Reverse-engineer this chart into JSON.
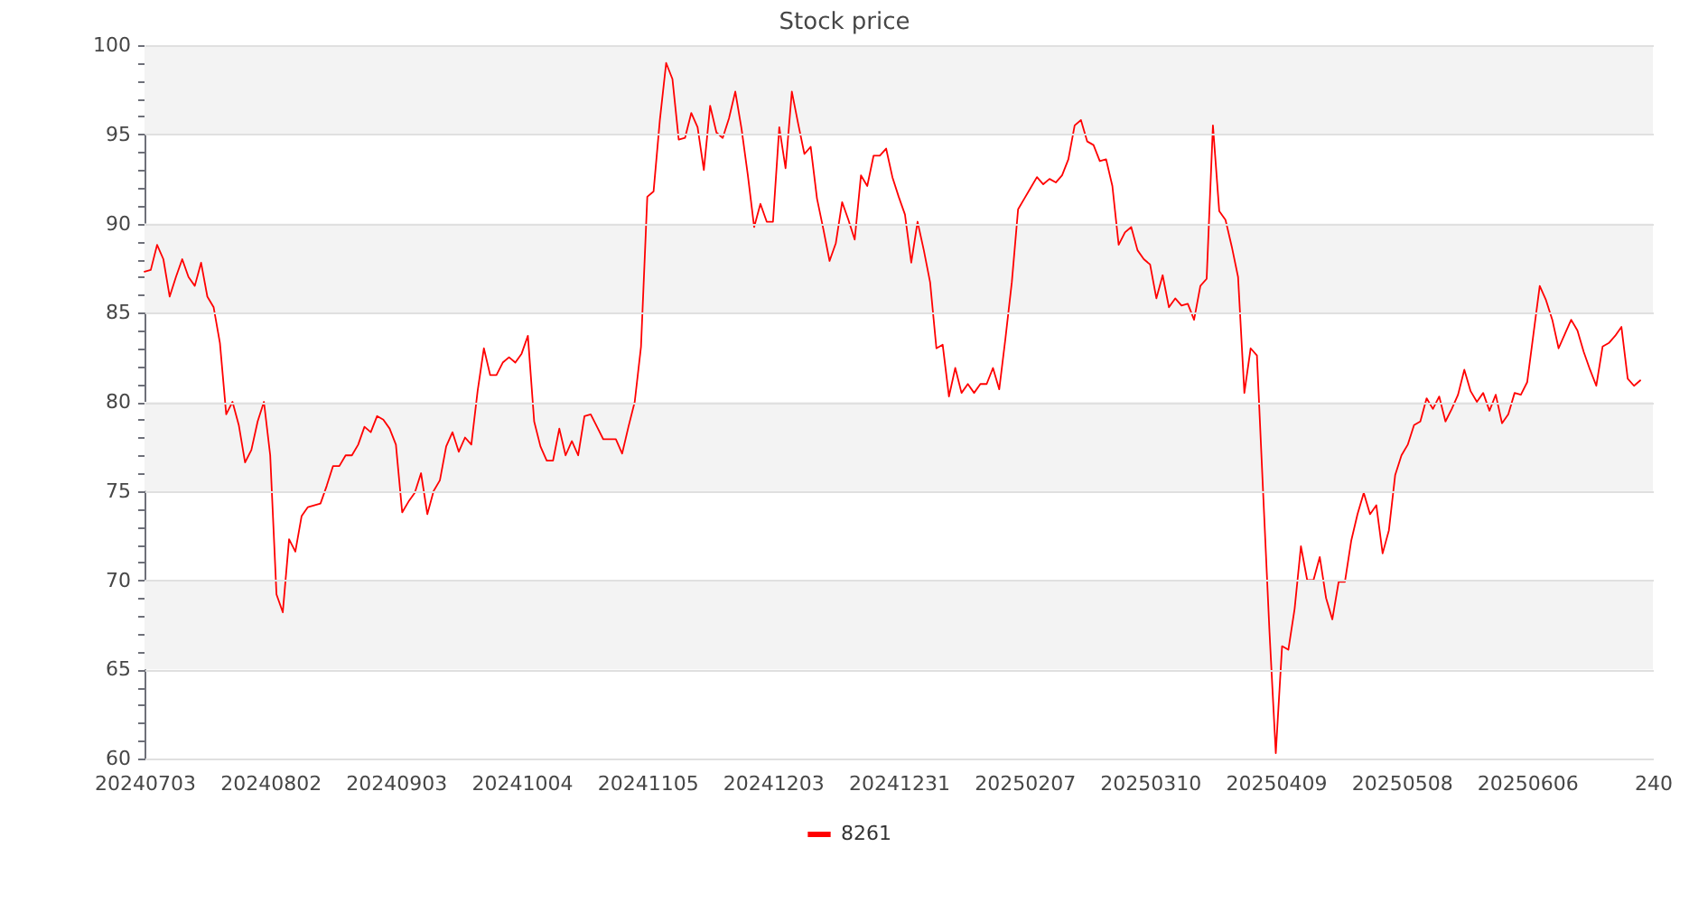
{
  "chart_data": {
    "type": "line",
    "title": "Stock price",
    "categories": [
      "20240703",
      null,
      null,
      null,
      null,
      null,
      null,
      null,
      null,
      null,
      null,
      null,
      null,
      null,
      null,
      null,
      null,
      null,
      null,
      null,
      "20240802",
      null,
      null,
      null,
      null,
      null,
      null,
      null,
      null,
      null,
      null,
      null,
      null,
      null,
      null,
      null,
      null,
      null,
      null,
      null,
      "20240903",
      null,
      null,
      null,
      null,
      null,
      null,
      null,
      null,
      null,
      null,
      null,
      null,
      null,
      null,
      null,
      null,
      null,
      null,
      null,
      "20241004",
      null,
      null,
      null,
      null,
      null,
      null,
      null,
      null,
      null,
      null,
      null,
      null,
      null,
      null,
      null,
      null,
      null,
      null,
      null,
      "20241105",
      null,
      null,
      null,
      null,
      null,
      null,
      null,
      null,
      null,
      null,
      null,
      null,
      null,
      null,
      null,
      null,
      null,
      null,
      null,
      "20241203",
      null,
      null,
      null,
      null,
      null,
      null,
      null,
      null,
      null,
      null,
      null,
      null,
      null,
      null,
      null,
      null,
      null,
      null,
      null,
      "20241231",
      null,
      null,
      null,
      null,
      null,
      null,
      null,
      null,
      null,
      null,
      null,
      null,
      null,
      null,
      null,
      null,
      null,
      null,
      null,
      "20250207",
      null,
      null,
      null,
      null,
      null,
      null,
      null,
      null,
      null,
      null,
      null,
      null,
      null,
      null,
      null,
      null,
      null,
      null,
      null,
      "20250310",
      null,
      null,
      null,
      null,
      null,
      null,
      null,
      null,
      null,
      null,
      null,
      null,
      null,
      null,
      null,
      null,
      null,
      null,
      null,
      "20250409",
      null,
      null,
      null,
      null,
      null,
      null,
      null,
      null,
      null,
      null,
      null,
      null,
      null,
      null,
      null,
      null,
      null,
      null,
      null,
      "20250508",
      null,
      null,
      null,
      null,
      null,
      null,
      null,
      null,
      null,
      null,
      null,
      null,
      null,
      null,
      null,
      null,
      null,
      null,
      null,
      "20250606",
      null,
      null,
      null,
      null,
      null,
      null,
      null,
      null,
      null,
      null,
      null,
      null,
      null,
      null,
      null,
      null,
      null,
      null,
      null,
      "240"
    ],
    "series": [
      {
        "name": "8261",
        "color": "#ff0000",
        "values": [
          87.3,
          87.4,
          88.8,
          88.0,
          85.9,
          87.0,
          88.0,
          87.0,
          86.5,
          87.8,
          85.9,
          85.3,
          83.3,
          79.3,
          80.0,
          78.7,
          76.6,
          77.3,
          78.9,
          80.0,
          77.0,
          69.2,
          68.2,
          72.3,
          71.6,
          73.6,
          74.1,
          74.2,
          74.3,
          75.3,
          76.4,
          76.4,
          77.0,
          77.0,
          77.6,
          78.6,
          78.3,
          79.2,
          79.0,
          78.5,
          77.6,
          73.8,
          74.4,
          74.9,
          76.0,
          73.7,
          75.0,
          75.6,
          77.5,
          78.3,
          77.2,
          78.0,
          77.6,
          80.6,
          83.0,
          81.5,
          81.5,
          82.2,
          82.5,
          82.2,
          82.7,
          83.7,
          78.9,
          77.5,
          76.7,
          76.7,
          78.5,
          77.0,
          77.8,
          77.0,
          79.2,
          79.3,
          78.6,
          77.9,
          77.9,
          77.9,
          77.1,
          78.6,
          80.0,
          83.1,
          91.5,
          91.8,
          95.8,
          99.0,
          98.1,
          94.7,
          94.8,
          96.2,
          95.4,
          93.0,
          96.6,
          95.1,
          94.8,
          95.9,
          97.4,
          95.3,
          92.7,
          89.8,
          91.1,
          90.1,
          90.1,
          95.4,
          93.1,
          97.4,
          95.6,
          93.9,
          94.3,
          91.4,
          89.7,
          87.9,
          88.9,
          91.2,
          90.2,
          89.1,
          92.7,
          92.1,
          93.8,
          93.8,
          94.2,
          92.6,
          91.5,
          90.5,
          87.8,
          90.1,
          88.5,
          86.7,
          83.0,
          83.2,
          80.3,
          81.9,
          80.5,
          81.0,
          80.5,
          81.0,
          81.0,
          81.9,
          80.7,
          83.6,
          86.7,
          90.8,
          91.4,
          92.0,
          92.6,
          92.2,
          92.5,
          92.3,
          92.7,
          93.6,
          95.5,
          95.8,
          94.6,
          94.4,
          93.5,
          93.6,
          92.1,
          88.8,
          89.5,
          89.8,
          88.5,
          88.0,
          87.7,
          85.8,
          87.1,
          85.3,
          85.8,
          85.4,
          85.5,
          84.6,
          86.5,
          86.9,
          95.5,
          90.7,
          90.2,
          88.7,
          87.0,
          80.5,
          83.0,
          82.6,
          74.8,
          67.1,
          60.3,
          66.3,
          66.1,
          68.4,
          71.9,
          70.0,
          70.0,
          71.3,
          69.0,
          67.8,
          69.9,
          69.9,
          72.2,
          73.7,
          74.9,
          73.7,
          74.2,
          71.5,
          72.8,
          75.9,
          77.0,
          77.6,
          78.7,
          78.9,
          80.2,
          79.6,
          80.3,
          78.9,
          79.6,
          80.4,
          81.8,
          80.6,
          80.0,
          80.5,
          79.5,
          80.4,
          78.8,
          79.3,
          80.5,
          80.4,
          81.1,
          83.8,
          86.5,
          85.7,
          84.6,
          83.0,
          83.8,
          84.6,
          84.0,
          82.8,
          81.8,
          80.9,
          83.1,
          83.3,
          83.7,
          84.2,
          81.3,
          80.9,
          81.2,
          null,
          null
        ]
      }
    ],
    "ylim": [
      60,
      100
    ],
    "yticks": [
      60,
      {
        "value": 61,
        "label": null
      },
      {
        "value": 62,
        "label": null
      },
      {
        "value": 63,
        "label": null
      },
      {
        "value": 64,
        "label": null
      },
      65,
      {
        "value": 66,
        "label": null
      },
      {
        "value": 67,
        "label": null
      },
      {
        "value": 68,
        "label": null
      },
      {
        "value": 69,
        "label": null
      },
      70,
      {
        "value": 71,
        "label": null
      },
      {
        "value": 72,
        "label": null
      },
      {
        "value": 73,
        "label": null
      },
      {
        "value": 74,
        "label": null
      },
      75,
      {
        "value": 76,
        "label": null
      },
      {
        "value": 77,
        "label": null
      },
      {
        "value": 78,
        "label": null
      },
      {
        "value": 79,
        "label": null
      },
      80,
      {
        "value": 81,
        "label": null
      },
      {
        "value": 82,
        "label": null
      },
      {
        "value": 83,
        "label": null
      },
      {
        "value": 84,
        "label": null
      },
      85,
      {
        "value": 86,
        "label": null
      },
      {
        "value": 87,
        "label": null
      },
      {
        "value": 88,
        "label": null
      },
      {
        "value": 89,
        "label": null
      },
      90,
      {
        "value": 91,
        "label": null
      },
      {
        "value": 92,
        "label": null
      },
      {
        "value": 93,
        "label": null
      },
      {
        "value": 94,
        "label": null
      },
      95,
      {
        "value": 96,
        "label": null
      },
      {
        "value": 97,
        "label": null
      },
      {
        "value": 98,
        "label": null
      },
      {
        "value": 99,
        "label": null
      },
      100
    ],
    "grid": "y",
    "legend": "bottom",
    "bands": [
      {
        "axis": "y",
        "from": 65,
        "to": 70,
        "color": "#f3f3f3"
      },
      {
        "axis": "y",
        "from": 75,
        "to": 80,
        "color": "#f3f3f3"
      },
      {
        "axis": "y",
        "from": 85,
        "to": 90,
        "color": "#f3f3f3"
      },
      {
        "axis": "y",
        "from": 95,
        "to": 100,
        "color": "#f3f3f3"
      }
    ]
  }
}
